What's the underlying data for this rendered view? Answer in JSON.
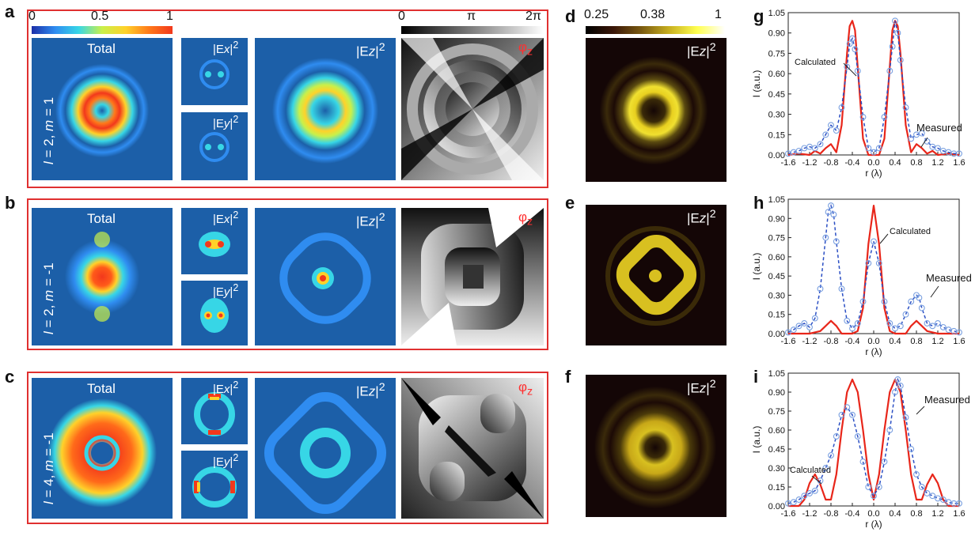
{
  "panels": {
    "a": "a",
    "b": "b",
    "c": "c",
    "d": "d",
    "e": "e",
    "f": "f",
    "g": "g",
    "h": "h",
    "i": "i"
  },
  "colorbars": {
    "intensity": {
      "min": "0",
      "mid": "0.5",
      "max": "1",
      "colors": [
        "#1c2fa8",
        "#2f8cf0",
        "#37d6e6",
        "#c9f04a",
        "#ffd22a",
        "#ff7a1a",
        "#f2381c"
      ]
    },
    "phase": {
      "min": "0",
      "mid": "π",
      "max": "2π"
    },
    "measured": {
      "min": "0.25",
      "mid": "0.38",
      "max": "1"
    }
  },
  "labels": {
    "total": "Total",
    "ex": "|Ex|2",
    "ey": "|Ey|2",
    "ez": "|Ez|2",
    "phi": "φz",
    "ex_base": "|E",
    "ex_sub": "x",
    "ex_sup": "2",
    "ex_bar": "|",
    "ey_sub": "y",
    "ez_sub": "z",
    "phi_base": "φ",
    "phi_sub": "z"
  },
  "rows": [
    {
      "letter": "a",
      "l": "2",
      "m": "1",
      "mode_text_l": "l",
      "mode_text": " = 2, ",
      "mode_text_m": "m",
      "mode_text_m_val": " = 1"
    },
    {
      "letter": "b",
      "l": "2",
      "m": "-1",
      "mode_text_l": "l",
      "mode_text": " = 2, ",
      "mode_text_m": "m",
      "mode_text_m_val": " = -1"
    },
    {
      "letter": "c",
      "l": "4",
      "m": "-1",
      "mode_text_l": "l",
      "mode_text": " = 4, ",
      "mode_text_m": "m",
      "mode_text_m_val": " = -1"
    }
  ],
  "chart_data": [
    {
      "panel": "g",
      "type": "line",
      "xlabel": "r (λ)",
      "ylabel": "I (a.u.)",
      "xlim": [
        -1.6,
        1.6
      ],
      "ylim": [
        0.0,
        1.05
      ],
      "xticks": [
        "-1.6",
        "-1.2",
        "-0.8",
        "-0.4",
        "0.0",
        "0.4",
        "0.8",
        "1.2",
        "1.6"
      ],
      "yticks": [
        "0.00",
        "0.15",
        "0.30",
        "0.45",
        "0.60",
        "0.75",
        "0.90",
        "1.05"
      ],
      "annotations": [
        "Calculated",
        "Measured"
      ],
      "series": [
        {
          "style": "solid-red",
          "x": [
            -1.6,
            -1.4,
            -1.2,
            -1.1,
            -1.0,
            -0.9,
            -0.8,
            -0.7,
            -0.6,
            -0.5,
            -0.45,
            -0.4,
            -0.35,
            -0.3,
            -0.2,
            -0.1,
            0.0,
            0.1,
            0.2,
            0.3,
            0.35,
            0.4,
            0.45,
            0.5,
            0.6,
            0.7,
            0.8,
            0.9,
            1.0,
            1.1,
            1.2,
            1.4,
            1.6
          ],
          "y": [
            0.0,
            0.01,
            0.0,
            0.03,
            0.01,
            0.05,
            0.08,
            0.02,
            0.22,
            0.75,
            0.95,
            0.99,
            0.92,
            0.65,
            0.12,
            0.0,
            0.0,
            0.0,
            0.12,
            0.65,
            0.92,
            0.99,
            0.95,
            0.75,
            0.22,
            0.02,
            0.08,
            0.05,
            0.01,
            0.03,
            0.0,
            0.01,
            0.0
          ]
        },
        {
          "style": "dashed-blue-circles",
          "x": [
            -1.6,
            -1.5,
            -1.4,
            -1.3,
            -1.2,
            -1.1,
            -1.0,
            -0.9,
            -0.8,
            -0.7,
            -0.6,
            -0.5,
            -0.45,
            -0.4,
            -0.35,
            -0.3,
            -0.2,
            -0.1,
            0.0,
            0.1,
            0.2,
            0.3,
            0.35,
            0.4,
            0.45,
            0.5,
            0.6,
            0.7,
            0.8,
            0.9,
            1.0,
            1.1,
            1.2,
            1.3,
            1.4,
            1.5,
            1.6
          ],
          "y": [
            0.01,
            0.02,
            0.03,
            0.05,
            0.06,
            0.05,
            0.08,
            0.15,
            0.22,
            0.18,
            0.35,
            0.65,
            0.82,
            0.86,
            0.78,
            0.62,
            0.28,
            0.05,
            0.02,
            0.05,
            0.28,
            0.62,
            0.8,
            0.99,
            0.9,
            0.7,
            0.35,
            0.12,
            0.15,
            0.16,
            0.1,
            0.06,
            0.05,
            0.03,
            0.02,
            0.01,
            0.01
          ]
        }
      ]
    },
    {
      "panel": "h",
      "type": "line",
      "xlabel": "r (λ)",
      "ylabel": "I (a.u.)",
      "xlim": [
        -1.6,
        1.6
      ],
      "ylim": [
        0.0,
        1.05
      ],
      "xticks": [
        "-1.6",
        "-1.2",
        "-0.8",
        "-0.4",
        "0.0",
        "0.4",
        "0.8",
        "1.2",
        "1.6"
      ],
      "yticks": [
        "0.00",
        "0.15",
        "0.30",
        "0.45",
        "0.60",
        "0.75",
        "0.90",
        "1.05"
      ],
      "annotations": [
        "Calculated",
        "Measured"
      ],
      "series": [
        {
          "style": "solid-red",
          "x": [
            -1.6,
            -1.4,
            -1.2,
            -1.0,
            -0.9,
            -0.8,
            -0.7,
            -0.6,
            -0.5,
            -0.4,
            -0.3,
            -0.2,
            -0.1,
            0.0,
            0.1,
            0.2,
            0.3,
            0.4,
            0.5,
            0.6,
            0.7,
            0.8,
            0.9,
            1.0,
            1.2,
            1.4,
            1.6
          ],
          "y": [
            0.0,
            0.0,
            0.0,
            0.02,
            0.06,
            0.1,
            0.06,
            0.0,
            0.0,
            0.0,
            0.02,
            0.2,
            0.7,
            1.0,
            0.7,
            0.2,
            0.02,
            0.0,
            0.0,
            0.0,
            0.06,
            0.1,
            0.06,
            0.02,
            0.0,
            0.0,
            0.0
          ]
        },
        {
          "style": "dashed-blue-circles",
          "x": [
            -1.6,
            -1.5,
            -1.4,
            -1.3,
            -1.2,
            -1.1,
            -1.0,
            -0.9,
            -0.85,
            -0.8,
            -0.75,
            -0.7,
            -0.6,
            -0.5,
            -0.4,
            -0.3,
            -0.2,
            -0.1,
            0.0,
            0.1,
            0.2,
            0.3,
            0.4,
            0.5,
            0.6,
            0.7,
            0.8,
            0.85,
            0.9,
            1.0,
            1.1,
            1.2,
            1.3,
            1.4,
            1.5,
            1.6
          ],
          "y": [
            0.01,
            0.03,
            0.06,
            0.08,
            0.05,
            0.12,
            0.35,
            0.75,
            0.95,
            1.0,
            0.93,
            0.72,
            0.35,
            0.1,
            0.04,
            0.08,
            0.25,
            0.55,
            0.72,
            0.55,
            0.25,
            0.08,
            0.04,
            0.06,
            0.15,
            0.25,
            0.3,
            0.28,
            0.2,
            0.08,
            0.06,
            0.08,
            0.05,
            0.03,
            0.02,
            0.01
          ]
        }
      ]
    },
    {
      "panel": "i",
      "type": "line",
      "xlabel": "r (λ)",
      "ylabel": "I (a.u.)",
      "xlim": [
        -1.6,
        1.6
      ],
      "ylim": [
        0.0,
        1.05
      ],
      "xticks": [
        "-1.6",
        "-1.2",
        "-0.8",
        "-0.4",
        "0.0",
        "0.4",
        "0.8",
        "1.2",
        "1.6"
      ],
      "yticks": [
        "0.00",
        "0.15",
        "0.30",
        "0.45",
        "0.60",
        "0.75",
        "0.90",
        "1.05"
      ],
      "annotations": [
        "Calculated",
        "Measured"
      ],
      "series": [
        {
          "style": "solid-red",
          "x": [
            -1.6,
            -1.4,
            -1.3,
            -1.2,
            -1.1,
            -1.0,
            -0.9,
            -0.8,
            -0.7,
            -0.6,
            -0.5,
            -0.4,
            -0.3,
            -0.2,
            -0.1,
            0.0,
            0.1,
            0.2,
            0.3,
            0.4,
            0.5,
            0.6,
            0.7,
            0.8,
            0.9,
            1.0,
            1.1,
            1.2,
            1.3,
            1.4,
            1.6
          ],
          "y": [
            0.0,
            0.0,
            0.05,
            0.18,
            0.25,
            0.17,
            0.05,
            0.05,
            0.25,
            0.6,
            0.9,
            1.0,
            0.9,
            0.6,
            0.25,
            0.05,
            0.25,
            0.6,
            0.9,
            1.0,
            0.9,
            0.6,
            0.25,
            0.05,
            0.05,
            0.17,
            0.25,
            0.18,
            0.05,
            0.0,
            0.0
          ]
        },
        {
          "style": "dashed-blue-circles",
          "x": [
            -1.6,
            -1.5,
            -1.4,
            -1.3,
            -1.2,
            -1.1,
            -1.0,
            -0.9,
            -0.8,
            -0.7,
            -0.6,
            -0.5,
            -0.4,
            -0.3,
            -0.2,
            -0.1,
            0.0,
            0.1,
            0.2,
            0.3,
            0.4,
            0.45,
            0.5,
            0.6,
            0.7,
            0.8,
            0.9,
            1.0,
            1.1,
            1.2,
            1.3,
            1.4,
            1.5,
            1.6
          ],
          "y": [
            0.02,
            0.03,
            0.05,
            0.08,
            0.1,
            0.12,
            0.2,
            0.3,
            0.4,
            0.55,
            0.72,
            0.78,
            0.72,
            0.55,
            0.35,
            0.15,
            0.08,
            0.15,
            0.35,
            0.6,
            0.9,
            1.0,
            0.95,
            0.7,
            0.45,
            0.25,
            0.15,
            0.1,
            0.08,
            0.06,
            0.05,
            0.03,
            0.02,
            0.02
          ]
        }
      ]
    }
  ]
}
